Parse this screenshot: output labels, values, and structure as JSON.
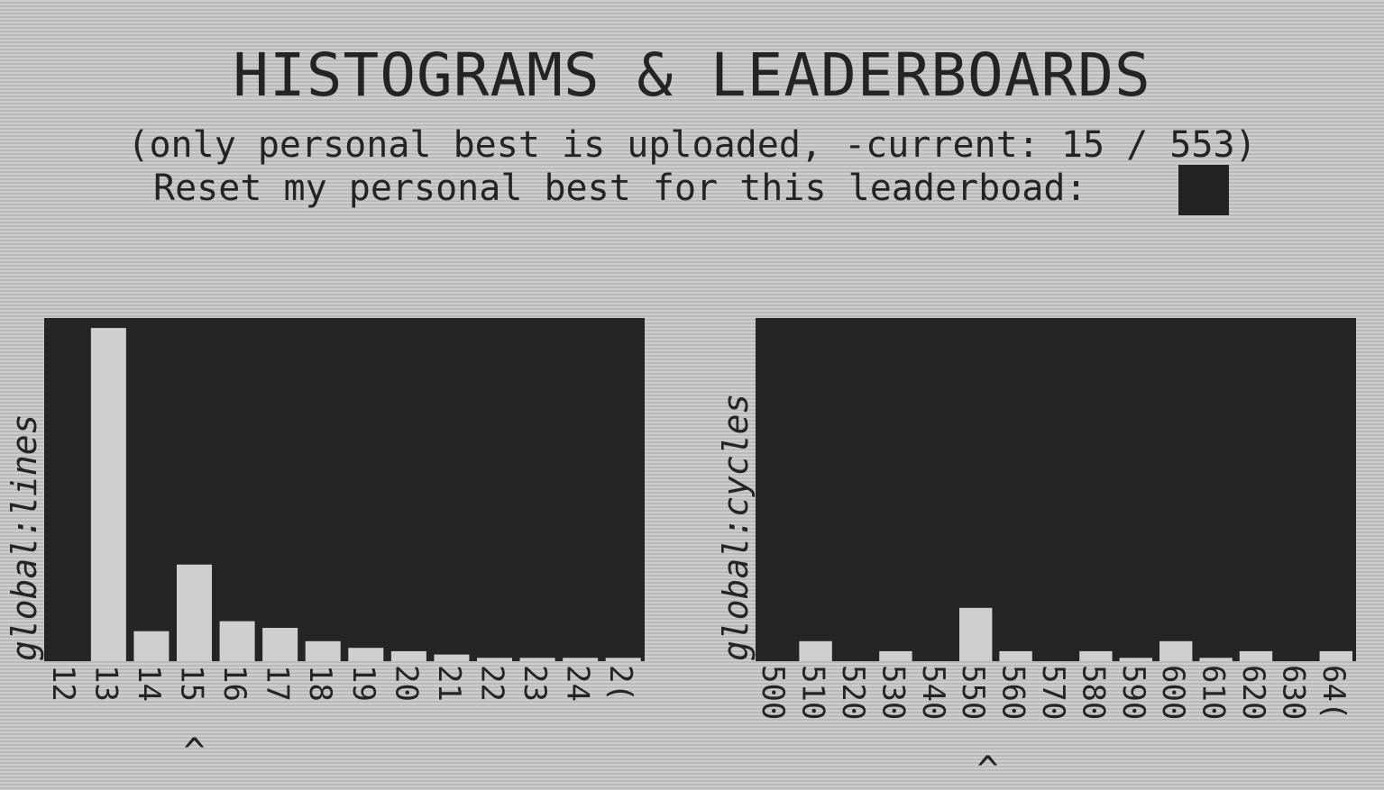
{
  "header": {
    "title": "HISTOGRAMS & LEADERBOARDS",
    "subtitle": "(only personal best is uploaded, -current: 15 / 553)",
    "reset_label": "Reset my personal best for this leaderboad:"
  },
  "colors": {
    "plot_bg": "#252525",
    "bar": "#cfcfcf",
    "text": "#242424"
  },
  "chart_data": [
    {
      "type": "bar",
      "ylabel": "global:lines",
      "categories": [
        "12",
        "13",
        "14",
        "15",
        "16",
        "17",
        "18",
        "19",
        "20",
        "21",
        "22",
        "23",
        "24",
        "2("
      ],
      "values": [
        0,
        100,
        9,
        29,
        12,
        10,
        6,
        4,
        3,
        2,
        1,
        1,
        1,
        1
      ],
      "ylim": [
        0,
        103
      ],
      "current_marker": "^",
      "current_category": "15"
    },
    {
      "type": "bar",
      "ylabel": "global:cycles",
      "categories": [
        "500",
        "510",
        "520",
        "530",
        "540",
        "550",
        "560",
        "570",
        "580",
        "590",
        "600",
        "610",
        "620",
        "630",
        "64("
      ],
      "values": [
        0,
        6,
        0,
        3,
        0,
        16,
        3,
        0,
        3,
        1,
        6,
        1,
        3,
        0,
        3
      ],
      "ylim": [
        0,
        103
      ],
      "current_marker": "^",
      "current_category": "553"
    }
  ]
}
